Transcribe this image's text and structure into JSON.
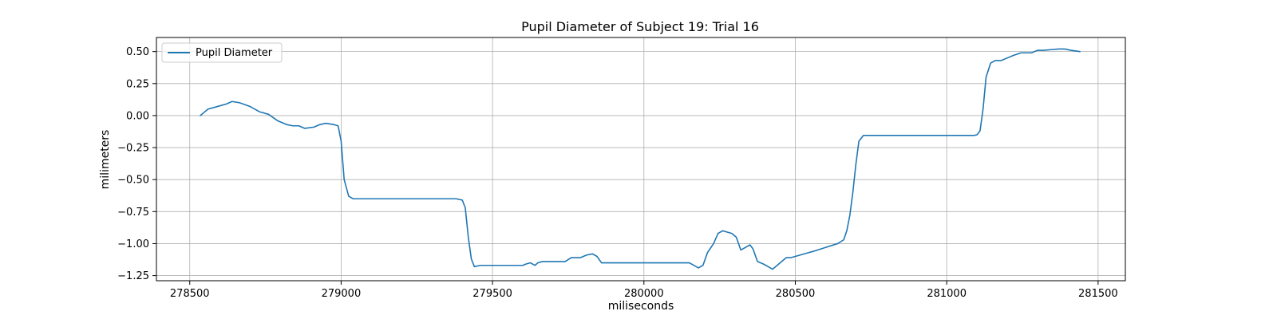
{
  "chart_data": {
    "type": "line",
    "title": "Pupil Diameter of Subject 19: Trial 16",
    "xlabel": "miliseconds",
    "ylabel": "milimeters",
    "xlim": [
      278390,
      281590
    ],
    "ylim": [
      -1.29,
      0.61
    ],
    "xticks": [
      278500,
      279000,
      279500,
      280000,
      280500,
      281000,
      281500
    ],
    "yticks": [
      0.5,
      0.25,
      0.0,
      -0.25,
      -0.5,
      -0.75,
      -1.0,
      -1.25
    ],
    "xtick_labels": [
      "278500",
      "279000",
      "279500",
      "280000",
      "280500",
      "281000",
      "281500"
    ],
    "ytick_labels": [
      "0.50",
      "0.25",
      "0.00",
      "−0.25",
      "−0.50",
      "−0.75",
      "−1.00",
      "−1.25"
    ],
    "grid": true,
    "legend": {
      "position": "upper-left",
      "entries": [
        "Pupil Diameter"
      ]
    },
    "series": [
      {
        "name": "Pupil Diameter",
        "color": "#1f77b4",
        "x": [
          278535,
          278560,
          278590,
          278620,
          278640,
          278665,
          278700,
          278730,
          278760,
          278790,
          278820,
          278840,
          278860,
          278880,
          278910,
          278930,
          278950,
          278975,
          278990,
          279000,
          279010,
          279025,
          279040,
          279100,
          279200,
          279300,
          279380,
          279400,
          279410,
          279420,
          279430,
          279440,
          279460,
          279500,
          279550,
          279600,
          279610,
          279625,
          279640,
          279650,
          279665,
          279700,
          279740,
          279760,
          279790,
          279810,
          279830,
          279845,
          279860,
          279900,
          280000,
          280100,
          280150,
          280165,
          280180,
          280195,
          280210,
          280230,
          280245,
          280260,
          280275,
          280290,
          280305,
          280320,
          280335,
          280350,
          280360,
          280375,
          280395,
          280410,
          280425,
          280440,
          280455,
          280470,
          280485,
          280500,
          280530,
          280560,
          280600,
          280640,
          280660,
          280670,
          280680,
          280690,
          280700,
          280710,
          280725,
          280800,
          280900,
          281000,
          281090,
          281100,
          281110,
          281120,
          281130,
          281145,
          281160,
          281180,
          281200,
          281220,
          281245,
          281265,
          281280,
          281300,
          281320,
          281345,
          281370,
          281390,
          281410,
          281440
        ],
        "y": [
          0.0,
          0.05,
          0.07,
          0.09,
          0.11,
          0.1,
          0.07,
          0.03,
          0.01,
          -0.04,
          -0.07,
          -0.08,
          -0.08,
          -0.1,
          -0.09,
          -0.07,
          -0.06,
          -0.07,
          -0.08,
          -0.2,
          -0.5,
          -0.63,
          -0.65,
          -0.65,
          -0.65,
          -0.65,
          -0.65,
          -0.66,
          -0.72,
          -0.95,
          -1.12,
          -1.18,
          -1.17,
          -1.17,
          -1.17,
          -1.17,
          -1.16,
          -1.15,
          -1.17,
          -1.15,
          -1.14,
          -1.14,
          -1.14,
          -1.11,
          -1.11,
          -1.09,
          -1.08,
          -1.1,
          -1.15,
          -1.15,
          -1.15,
          -1.15,
          -1.15,
          -1.17,
          -1.19,
          -1.17,
          -1.07,
          -1.0,
          -0.92,
          -0.9,
          -0.91,
          -0.92,
          -0.95,
          -1.05,
          -1.03,
          -1.01,
          -1.04,
          -1.14,
          -1.16,
          -1.18,
          -1.2,
          -1.17,
          -1.14,
          -1.11,
          -1.11,
          -1.1,
          -1.08,
          -1.06,
          -1.03,
          -1.0,
          -0.97,
          -0.9,
          -0.78,
          -0.6,
          -0.38,
          -0.2,
          -0.155,
          -0.155,
          -0.155,
          -0.155,
          -0.155,
          -0.15,
          -0.12,
          0.05,
          0.3,
          0.41,
          0.43,
          0.43,
          0.45,
          0.47,
          0.49,
          0.49,
          0.49,
          0.51,
          0.51,
          0.515,
          0.52,
          0.52,
          0.51,
          0.5
        ]
      }
    ]
  }
}
